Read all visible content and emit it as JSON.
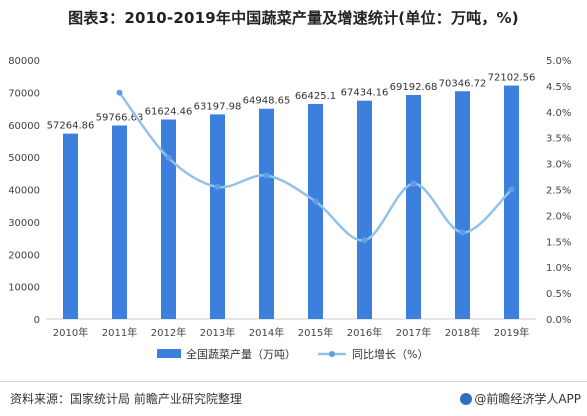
{
  "title": "图表3：2010-2019年中国蔬菜产量及增速统计(单位：万吨，%)",
  "source": "资料来源：国家统计局 前瞻产业研究院整理",
  "brand": "@前瞻经济学人APP",
  "colors": {
    "bar": "#3d7fdc",
    "line": "#92c2ea",
    "marker": "#5f9fe0",
    "grid": "#d9d9d9"
  },
  "chart_data": {
    "type": "bar",
    "categories": [
      "2010年",
      "2011年",
      "2012年",
      "2013年",
      "2014年",
      "2015年",
      "2016年",
      "2017年",
      "2018年",
      "2019年"
    ],
    "series": [
      {
        "name": "全国蔬菜产量（万吨）",
        "type": "bar",
        "axis": "left",
        "values": [
          57264.86,
          59766.63,
          61624.46,
          63197.98,
          64948.65,
          66425.1,
          67434.16,
          69192.68,
          70346.72,
          72102.56
        ],
        "labels": [
          "57264.86",
          "59766.63",
          "61624.46",
          "63197.98",
          "64948.65",
          "66425.1",
          "67434.16",
          "69192.68",
          "70346.72",
          "72102.56"
        ]
      },
      {
        "name": "同比增长（%）",
        "type": "line",
        "axis": "right",
        "values": [
          null,
          4.37,
          3.11,
          2.55,
          2.77,
          2.27,
          1.52,
          2.61,
          1.67,
          2.5
        ]
      }
    ],
    "y_left": {
      "min": 0,
      "max": 80000,
      "step": 10000,
      "ticks": [
        "0",
        "10000",
        "20000",
        "30000",
        "40000",
        "50000",
        "60000",
        "70000",
        "80000"
      ]
    },
    "y_right": {
      "min": 0,
      "max": 5,
      "step": 0.5,
      "ticks": [
        "0.0%",
        "0.5%",
        "1.0%",
        "1.5%",
        "2.0%",
        "2.5%",
        "3.0%",
        "3.5%",
        "4.0%",
        "4.5%",
        "5.0%"
      ]
    },
    "grid": false,
    "legend_position": "bottom"
  }
}
